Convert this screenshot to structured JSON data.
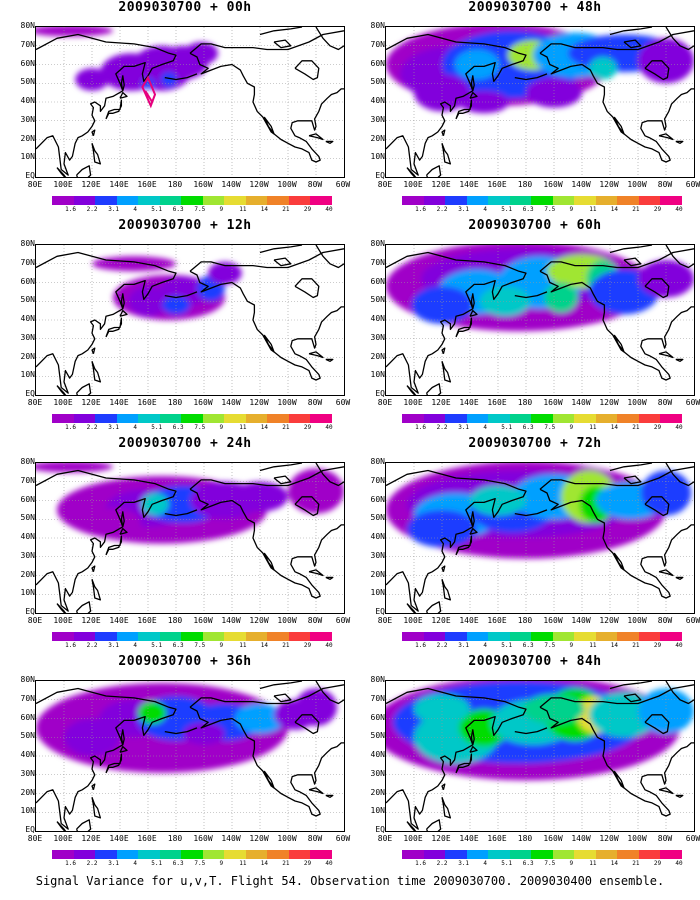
{
  "caption": "Signal Variance for u,v,T. Flight 54. Observation time 2009030700. 2009030400 ensemble.",
  "panels": [
    {
      "title": "2009030700 + 00h"
    },
    {
      "title": "2009030700 + 48h"
    },
    {
      "title": "2009030700 + 12h"
    },
    {
      "title": "2009030700 + 60h"
    },
    {
      "title": "2009030700 + 24h"
    },
    {
      "title": "2009030700 + 72h"
    },
    {
      "title": "2009030700 + 36h"
    },
    {
      "title": "2009030700 + 84h"
    }
  ],
  "x_ticks": [
    "80E",
    "100E",
    "120E",
    "140E",
    "160E",
    "180",
    "160W",
    "140W",
    "120W",
    "100W",
    "80W",
    "60W"
  ],
  "y_ticks": [
    "80N",
    "70N",
    "60N",
    "50N",
    "40N",
    "30N",
    "20N",
    "10N",
    "EQ"
  ],
  "colorbar": {
    "labels": [
      "1.6",
      "2.2",
      "3.1",
      "4",
      "5.1",
      "6.3",
      "7.5",
      "9",
      "11",
      "14",
      "21",
      "29",
      "40"
    ],
    "colors": [
      "#a000c8",
      "#8200dc",
      "#1e3cff",
      "#00a0ff",
      "#00c8c8",
      "#00d28c",
      "#00dc00",
      "#a0e632",
      "#e6dc32",
      "#e6af2d",
      "#f08228",
      "#fa3c3c",
      "#f00082"
    ]
  },
  "map_colors": {
    "land": "#000000",
    "grid": "#999999",
    "flight_track": "#e6007e"
  }
}
